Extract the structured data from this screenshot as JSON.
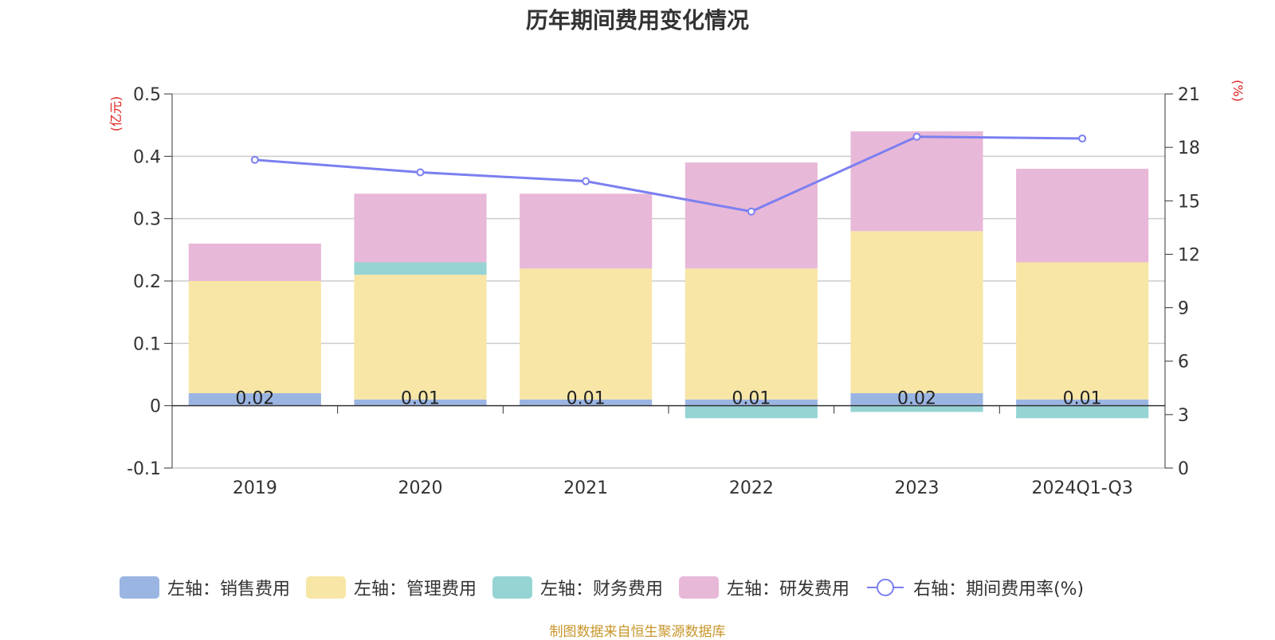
{
  "title": "历年期间费用变化情况",
  "footer": "制图数据来自恒生聚源数据库",
  "legend": [
    {
      "label": "左轴：销售费用",
      "color": "#9bb5e3",
      "kind": "bar"
    },
    {
      "label": "左轴：管理费用",
      "color": "#f7e6a6",
      "kind": "bar"
    },
    {
      "label": "左轴：财务费用",
      "color": "#96d4d4",
      "kind": "bar"
    },
    {
      "label": "左轴：研发费用",
      "color": "#e8b8d8",
      "kind": "bar"
    },
    {
      "label": "右轴：期间费用率(%)",
      "color": "#7b7ff0",
      "kind": "line"
    }
  ],
  "chart_data": {
    "type": "bar",
    "stacked": true,
    "categories": [
      "2019",
      "2020",
      "2021",
      "2022",
      "2023",
      "2024Q1-Q3"
    ],
    "left_axis": {
      "label": "(亿元)",
      "min": -0.1,
      "max": 0.5,
      "ticks": [
        -0.1,
        0,
        0.1,
        0.2,
        0.3,
        0.4,
        0.5
      ],
      "tick_labels": [
        "-0.1",
        "0",
        "0.1",
        "0.2",
        "0.3",
        "0.4",
        "0.5"
      ]
    },
    "right_axis": {
      "label": "(%)",
      "min": 0,
      "max": 21,
      "ticks": [
        0,
        3,
        6,
        9,
        12,
        15,
        18,
        21
      ],
      "tick_labels": [
        "0",
        "3",
        "6",
        "9",
        "12",
        "15",
        "18",
        "21"
      ]
    },
    "series": [
      {
        "name": "左轴：销售费用",
        "axis": "left",
        "color": "#9bb5e3",
        "values": [
          0.02,
          0.01,
          0.01,
          0.01,
          0.02,
          0.01
        ],
        "data_labels": [
          "0.02",
          "0.01",
          "0.01",
          "0.01",
          "0.02",
          "0.01"
        ]
      },
      {
        "name": "左轴：管理费用",
        "axis": "left",
        "color": "#f7e6a6",
        "values": [
          0.18,
          0.2,
          0.21,
          0.21,
          0.26,
          0.22
        ]
      },
      {
        "name": "左轴：财务费用",
        "axis": "left",
        "color": "#96d4d4",
        "values": [
          0.0,
          0.02,
          0.0,
          -0.02,
          -0.01,
          -0.02
        ]
      },
      {
        "name": "左轴：研发费用",
        "axis": "left",
        "color": "#e8b8d8",
        "values": [
          0.06,
          0.11,
          0.12,
          0.17,
          0.16,
          0.15
        ]
      },
      {
        "name": "右轴：期间费用率(%)",
        "axis": "right",
        "type": "line",
        "color": "#7b7ff0",
        "values": [
          17.3,
          16.6,
          16.1,
          14.4,
          18.6,
          18.5
        ]
      }
    ],
    "grid": true,
    "legend_position": "bottom"
  }
}
